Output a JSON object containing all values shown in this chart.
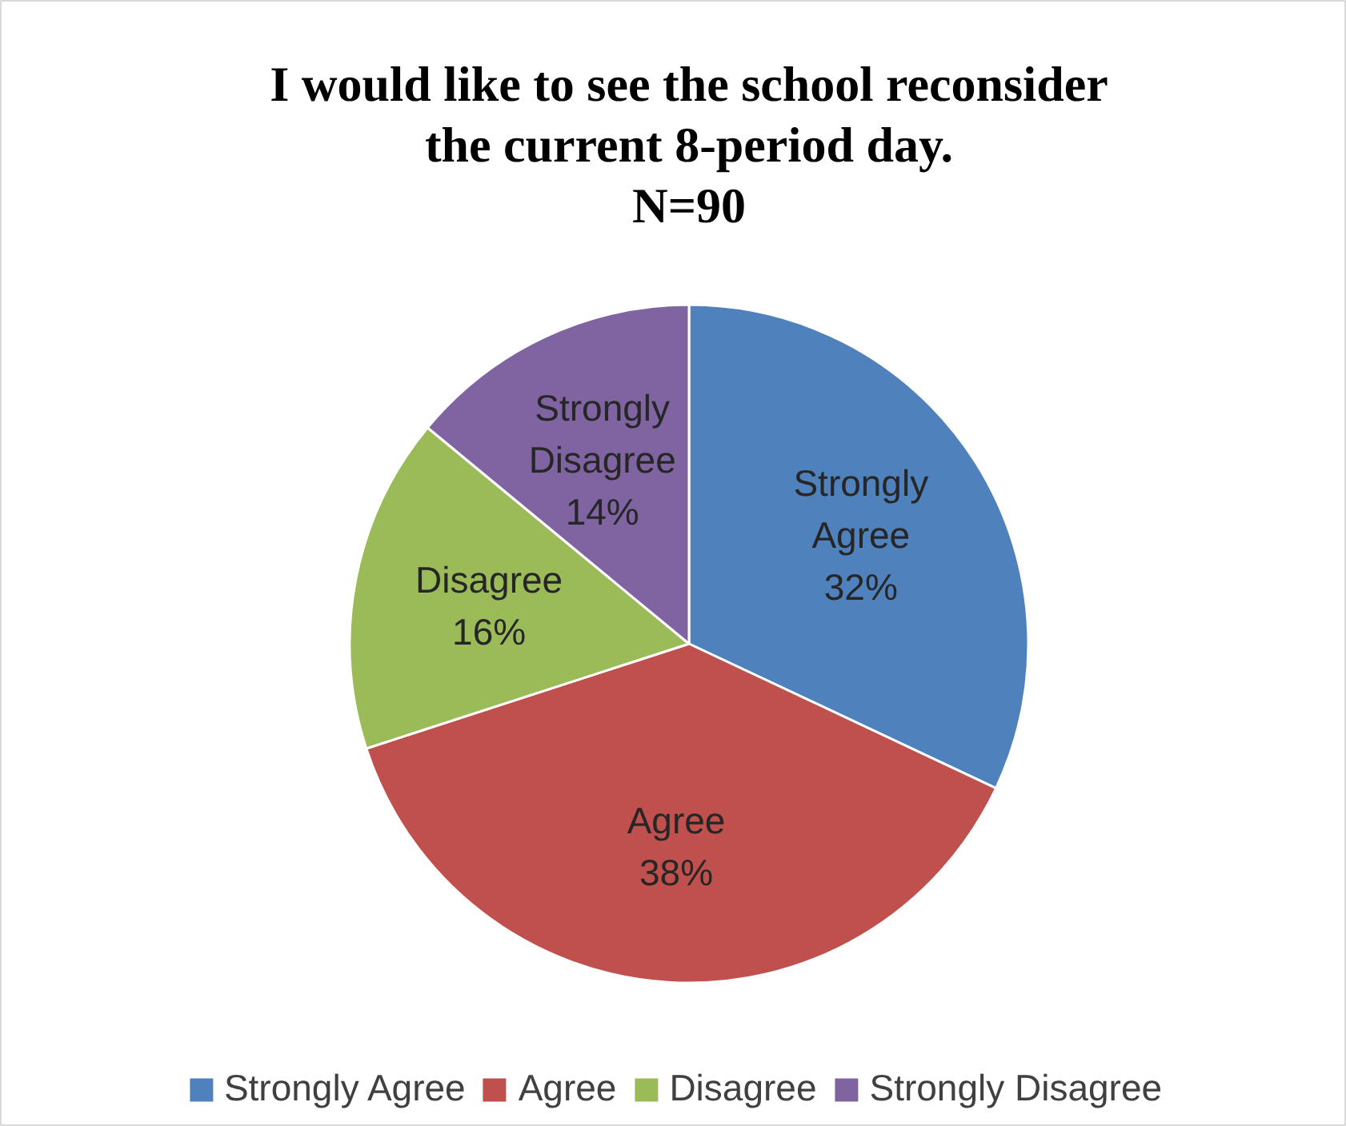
{
  "chart_data": {
    "type": "pie",
    "title": "I would like to see the school reconsider the current 8-period day.",
    "subtitle": "N=90",
    "categories": [
      "Strongly Agree",
      "Agree",
      "Disagree",
      "Strongly Disagree"
    ],
    "values": [
      32,
      38,
      16,
      14
    ],
    "colors": [
      "#4f81bd",
      "#c0504d",
      "#9bbb59",
      "#8064a2"
    ],
    "value_labels": [
      "Strongly\nAgree\n32%",
      "Agree\n38%",
      "Disagree\n16%",
      "Strongly\nDisagree\n14%"
    ],
    "legend": "bottom"
  }
}
